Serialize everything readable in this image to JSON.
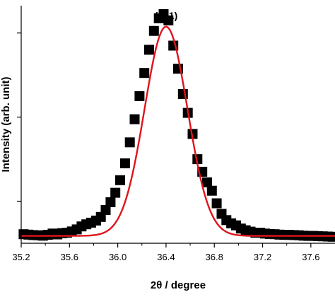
{
  "chart_data": {
    "type": "scatter",
    "title": "",
    "xlabel": "2θ / degree",
    "ylabel": "Intensity (arb. unit)",
    "xlim": [
      35.2,
      37.8
    ],
    "ylim": [
      0,
      1.13
    ],
    "x_ticks": [
      "35.2",
      "35.6",
      "36.0",
      "36.4",
      "36.8",
      "37.2",
      "37.6"
    ],
    "y_ticks_labeled": false,
    "annotation": {
      "text": "(101)",
      "x": 36.4
    },
    "colors": {
      "data": "#000000",
      "fit": "#e0141b",
      "axis": "#000000"
    },
    "series": [
      {
        "kind": "markers",
        "marker": "square",
        "x": [
          35.22,
          35.26,
          35.3,
          35.34,
          35.38,
          35.42,
          35.46,
          35.5,
          35.54,
          35.58,
          35.62,
          35.66,
          35.7,
          35.74,
          35.78,
          35.82,
          35.86,
          35.9,
          35.94,
          35.98,
          36.02,
          36.06,
          36.1,
          36.14,
          36.18,
          36.22,
          36.26,
          36.3,
          36.34,
          36.38,
          36.42,
          36.46,
          36.5,
          36.54,
          36.58,
          36.62,
          36.66,
          36.7,
          36.74,
          36.78,
          36.82,
          36.86,
          36.9,
          36.94,
          36.98,
          37.02,
          37.06,
          37.1,
          37.14,
          37.18,
          37.22,
          37.26,
          37.3,
          37.34,
          37.38,
          37.42,
          37.46,
          37.5,
          37.54,
          37.58,
          37.62,
          37.66,
          37.7,
          37.74,
          37.78
        ],
        "y": [
          0.043,
          0.041,
          0.039,
          0.038,
          0.036,
          0.04,
          0.046,
          0.042,
          0.048,
          0.05,
          0.056,
          0.066,
          0.08,
          0.09,
          0.098,
          0.108,
          0.125,
          0.158,
          0.195,
          0.24,
          0.3,
          0.38,
          0.48,
          0.59,
          0.7,
          0.81,
          0.92,
          1.01,
          1.07,
          1.09,
          1.06,
          0.94,
          0.83,
          0.71,
          0.62,
          0.52,
          0.4,
          0.34,
          0.29,
          0.25,
          0.19,
          0.14,
          0.11,
          0.095,
          0.085,
          0.07,
          0.062,
          0.055,
          0.05,
          0.05,
          0.046,
          0.044,
          0.043,
          0.041,
          0.04,
          0.04,
          0.039,
          0.038,
          0.036,
          0.035,
          0.035,
          0.034,
          0.033,
          0.032,
          0.031
        ]
      },
      {
        "kind": "line",
        "fit": "gaussian",
        "x0": 36.4,
        "amplitude": 0.995,
        "sigma": 0.178,
        "baseline": 0.035
      }
    ]
  }
}
